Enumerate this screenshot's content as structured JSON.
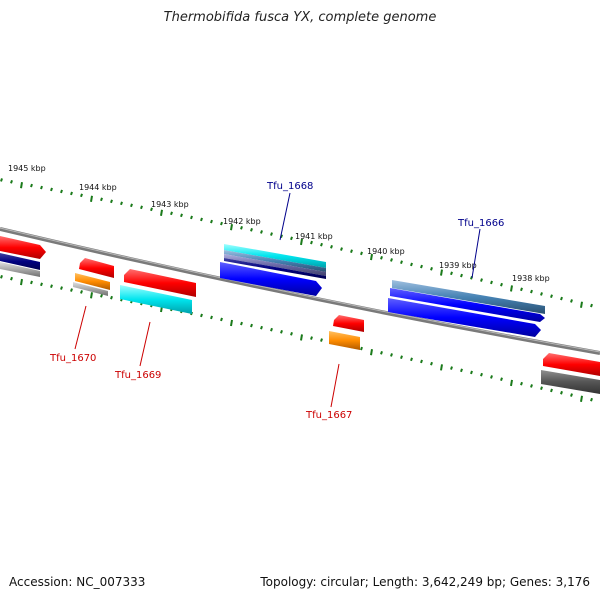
{
  "title": "Thermobifida fusca YX, complete genome",
  "footer": {
    "accession": "Accession: NC_007333",
    "summary": "Topology: circular; Length: 3,642,249 bp; Genes: 3,176"
  },
  "ruler": {
    "labels": [
      "1945 kbp",
      "1944 kbp",
      "1943 kbp",
      "1942 kbp",
      "1941 kbp",
      "1940 kbp",
      "1939 kbp",
      "1938 kbp"
    ]
  },
  "genes": [
    {
      "name": "Tfu_1668",
      "strand": "forward",
      "color": "#00008b"
    },
    {
      "name": "Tfu_1666",
      "strand": "forward",
      "color": "#00008b"
    },
    {
      "name": "Tfu_1670",
      "strand": "reverse",
      "color": "#cc0000"
    },
    {
      "name": "Tfu_1669",
      "strand": "reverse",
      "color": "#cc0000"
    },
    {
      "name": "Tfu_1667",
      "strand": "reverse",
      "color": "#cc0000"
    }
  ],
  "colors": {
    "backbone": "#808080",
    "ticks": "#1a7a1a",
    "cds_forward": "#0000ff",
    "cds_reverse": "#ff0000",
    "rna": "#ff8c00",
    "cyan": "#00e5ee"
  }
}
